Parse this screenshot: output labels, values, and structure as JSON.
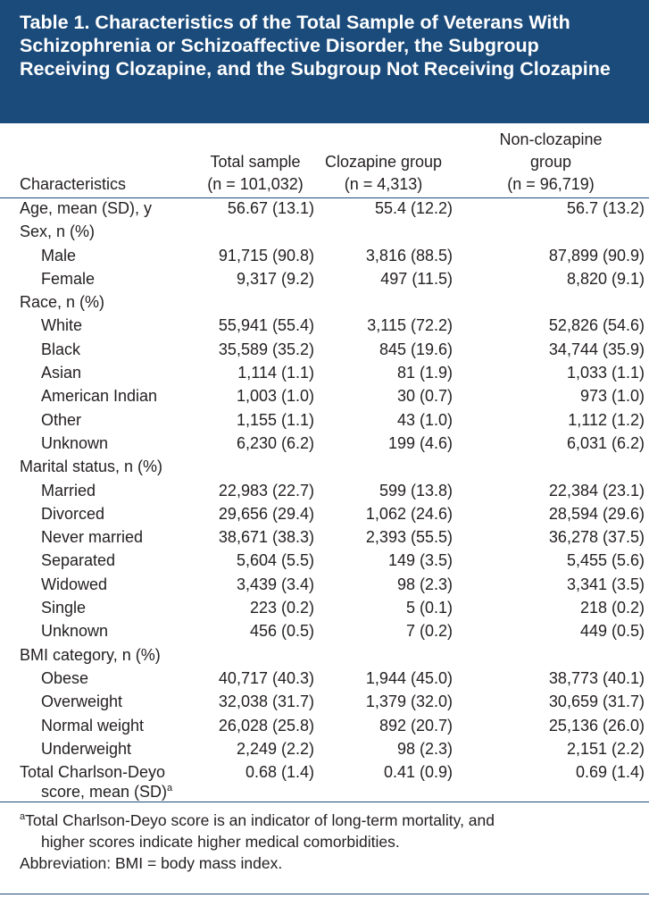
{
  "title": "Table 1. Characteristics of the Total Sample of Veterans With Schizophrenia or Schizoaffective Disorder, the Subgroup Receiving Clozapine, and the Subgroup Not Receiving Clozapine",
  "table": {
    "columns": [
      [
        "Characteristics"
      ],
      [
        "Total sample",
        "(n = 101,032)"
      ],
      [
        "Clozapine group",
        "(n = 4,313)"
      ],
      [
        "Non-clozapine",
        "group",
        "(n = 96,719)"
      ]
    ],
    "rows": [
      {
        "label": "Age, mean (SD), y",
        "values": [
          "56.67 (13.1)",
          "55.4 (12.2)",
          "56.7 (13.2)"
        ]
      },
      {
        "label": "Sex, n (%)",
        "items": [
          {
            "label": "Male",
            "values": [
              "91,715 (90.8)",
              "3,816 (88.5)",
              "87,899 (90.9)"
            ]
          },
          {
            "label": "Female",
            "values": [
              "9,317 (9.2)",
              "497 (11.5)",
              "8,820 (9.1)"
            ]
          }
        ]
      },
      {
        "label": "Race, n (%)",
        "items": [
          {
            "label": "White",
            "values": [
              "55,941 (55.4)",
              "3,115 (72.2)",
              "52,826 (54.6)"
            ]
          },
          {
            "label": "Black",
            "values": [
              "35,589 (35.2)",
              "845 (19.6)",
              "34,744 (35.9)"
            ]
          },
          {
            "label": "Asian",
            "values": [
              "1,114 (1.1)",
              "81 (1.9)",
              "1,033 (1.1)"
            ]
          },
          {
            "label": "American Indian",
            "values": [
              "1,003 (1.0)",
              "30 (0.7)",
              "973 (1.0)"
            ]
          },
          {
            "label": "Other",
            "values": [
              "1,155 (1.1)",
              "43 (1.0)",
              "1,112 (1.2)"
            ]
          },
          {
            "label": "Unknown",
            "values": [
              "6,230 (6.2)",
              "199 (4.6)",
              "6,031 (6.2)"
            ]
          }
        ]
      },
      {
        "label": "Marital status, n (%)",
        "items": [
          {
            "label": "Married",
            "values": [
              "22,983 (22.7)",
              "599 (13.8)",
              "22,384 (23.1)"
            ]
          },
          {
            "label": "Divorced",
            "values": [
              "29,656 (29.4)",
              "1,062 (24.6)",
              "28,594 (29.6)"
            ]
          },
          {
            "label": "Never married",
            "values": [
              "38,671 (38.3)",
              "2,393 (55.5)",
              "36,278 (37.5)"
            ]
          },
          {
            "label": "Separated",
            "values": [
              "5,604 (5.5)",
              "149 (3.5)",
              "5,455 (5.6)"
            ]
          },
          {
            "label": "Widowed",
            "values": [
              "3,439 (3.4)",
              "98 (2.3)",
              "3,341 (3.5)"
            ]
          },
          {
            "label": "Single",
            "values": [
              "223 (0.2)",
              "5 (0.1)",
              "218 (0.2)"
            ]
          },
          {
            "label": "Unknown",
            "values": [
              "456 (0.5)",
              "7 (0.2)",
              "449 (0.5)"
            ]
          }
        ]
      },
      {
        "label": "BMI category, n (%)",
        "items": [
          {
            "label": "Obese",
            "values": [
              "40,717 (40.3)",
              "1,944 (45.0)",
              "38,773 (40.1)"
            ]
          },
          {
            "label": "Overweight",
            "values": [
              "32,038 (31.7)",
              "1,379 (32.0)",
              "30,659 (31.7)"
            ]
          },
          {
            "label": "Normal weight",
            "values": [
              "26,028 (25.8)",
              "892 (20.7)",
              "25,136 (26.0)"
            ]
          },
          {
            "label": "Underweight",
            "values": [
              "2,249 (2.2)",
              "98 (2.3)",
              "2,151 (2.2)"
            ]
          }
        ]
      },
      {
        "label": [
          "Total Charlson-Deyo",
          "score, mean (SD)"
        ],
        "note": "a",
        "values": [
          "0.68 (1.4)",
          "0.41 (0.9)",
          "0.69 (1.4)"
        ]
      }
    ]
  },
  "footnotes": [
    {
      "marker": "a",
      "text": [
        "Total Charlson-Deyo score is an indicator of long-term mortality, and",
        "higher scores indicate higher medical comorbidities."
      ]
    }
  ],
  "abbreviation": "Abbreviation: BMI = body mass index."
}
